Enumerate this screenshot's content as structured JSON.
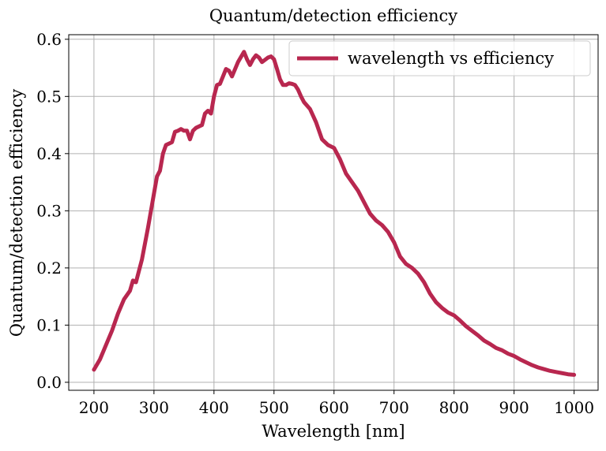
{
  "chart_data": {
    "type": "line",
    "title": "Quantum/detection efficiency",
    "xlabel": "Wavelength [nm]",
    "ylabel": "Quantum/detection efficiency",
    "x": [
      200,
      210,
      220,
      230,
      240,
      250,
      260,
      265,
      270,
      280,
      290,
      300,
      305,
      310,
      315,
      320,
      330,
      335,
      340,
      345,
      350,
      355,
      360,
      365,
      370,
      380,
      385,
      390,
      395,
      400,
      405,
      410,
      415,
      420,
      425,
      430,
      440,
      450,
      455,
      460,
      465,
      470,
      475,
      480,
      490,
      495,
      500,
      505,
      510,
      515,
      520,
      525,
      530,
      535,
      540,
      545,
      550,
      560,
      570,
      580,
      590,
      600,
      610,
      620,
      630,
      640,
      650,
      660,
      670,
      680,
      690,
      700,
      710,
      720,
      730,
      740,
      750,
      760,
      770,
      780,
      790,
      800,
      810,
      820,
      830,
      840,
      850,
      860,
      870,
      880,
      890,
      900,
      910,
      920,
      930,
      940,
      950,
      960,
      970,
      980,
      990,
      1000
    ],
    "series": [
      {
        "name": "wavelength vs efficiency",
        "color": "#b8274f",
        "values": [
          0.022,
          0.04,
          0.065,
          0.09,
          0.12,
          0.145,
          0.16,
          0.178,
          0.175,
          0.215,
          0.27,
          0.33,
          0.36,
          0.37,
          0.4,
          0.415,
          0.42,
          0.438,
          0.44,
          0.443,
          0.44,
          0.44,
          0.425,
          0.44,
          0.445,
          0.45,
          0.47,
          0.475,
          0.47,
          0.5,
          0.52,
          0.522,
          0.535,
          0.548,
          0.545,
          0.535,
          0.56,
          0.578,
          0.565,
          0.555,
          0.565,
          0.572,
          0.568,
          0.56,
          0.568,
          0.57,
          0.565,
          0.548,
          0.53,
          0.52,
          0.52,
          0.523,
          0.522,
          0.52,
          0.512,
          0.5,
          0.49,
          0.478,
          0.455,
          0.425,
          0.415,
          0.41,
          0.39,
          0.365,
          0.35,
          0.335,
          0.315,
          0.295,
          0.283,
          0.275,
          0.263,
          0.245,
          0.22,
          0.207,
          0.2,
          0.19,
          0.175,
          0.155,
          0.14,
          0.13,
          0.122,
          0.117,
          0.108,
          0.098,
          0.09,
          0.082,
          0.073,
          0.067,
          0.06,
          0.056,
          0.05,
          0.046,
          0.04,
          0.035,
          0.03,
          0.026,
          0.023,
          0.02,
          0.018,
          0.016,
          0.014,
          0.013
        ]
      }
    ],
    "xlim": [
      158,
      1040
    ],
    "ylim": [
      -0.014,
      0.608
    ],
    "xticks": [
      200,
      300,
      400,
      500,
      600,
      700,
      800,
      900,
      1000
    ],
    "yticks": [
      {
        "value": 0,
        "label": "0.0"
      },
      0.1,
      0.2,
      0.3,
      0.4,
      0.5,
      0.6
    ],
    "grid": true,
    "legend": "upper-right"
  }
}
